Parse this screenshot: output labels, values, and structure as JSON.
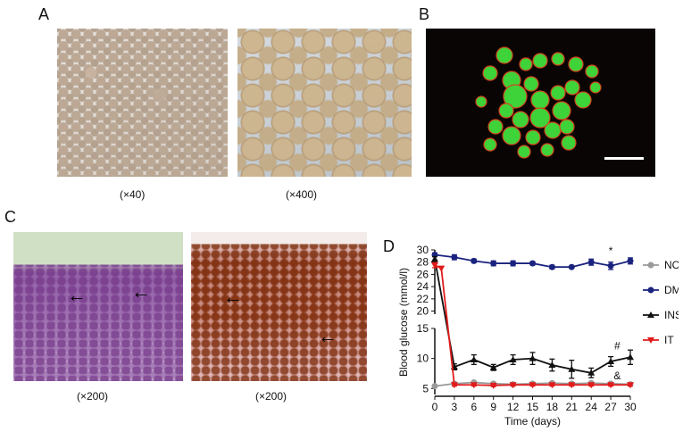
{
  "panels": {
    "A": {
      "letter": "A",
      "caption_left": "(×40)",
      "caption_right": "(×400)"
    },
    "B": {
      "letter": "B"
    },
    "C": {
      "letter": "C",
      "caption_left": "(×200)",
      "caption_right": "(×200)"
    },
    "D": {
      "letter": "D"
    }
  },
  "chart_data": {
    "type": "line",
    "xlabel": "Time (days)",
    "ylabel": "Blood glucose (mmol/l)",
    "x_ticks": [
      0,
      3,
      6,
      9,
      12,
      15,
      18,
      21,
      24,
      27,
      30
    ],
    "y_ticks_lower": [
      5,
      10,
      15
    ],
    "y_ticks_upper": [
      20,
      22,
      24,
      26,
      28,
      30
    ],
    "y_axis_break": true,
    "xlim": [
      0,
      30
    ],
    "annotations": [
      {
        "text": "*",
        "x": 27,
        "y": 29.3
      },
      {
        "text": "#",
        "x": 28,
        "y": 11.5
      },
      {
        "text": "&",
        "x": 28,
        "y": 6.5
      }
    ],
    "legend_position": "right",
    "series": [
      {
        "name": "NC",
        "color": "#9a9a9a",
        "marker": "circle",
        "x": [
          0,
          3,
          6,
          9,
          12,
          15,
          18,
          21,
          24,
          27,
          30
        ],
        "values": [
          5.4,
          5.8,
          6.0,
          5.8,
          5.7,
          5.8,
          5.9,
          5.8,
          5.9,
          5.8,
          5.7
        ],
        "errors": [
          0.2,
          0.2,
          0.2,
          0.2,
          0.2,
          0.2,
          0.2,
          0.2,
          0.2,
          0.2,
          0.2
        ]
      },
      {
        "name": "DM",
        "color": "#1a237e",
        "marker": "circle",
        "x": [
          0,
          3,
          6,
          9,
          12,
          15,
          18,
          21,
          24,
          27,
          30
        ],
        "values": [
          29.2,
          28.8,
          28.2,
          27.8,
          27.8,
          27.8,
          27.2,
          27.2,
          28.0,
          27.4,
          28.2
        ],
        "errors": [
          0.3,
          0.4,
          0.3,
          0.4,
          0.4,
          0.3,
          0.3,
          0.2,
          0.5,
          0.6,
          0.5
        ]
      },
      {
        "name": "INS",
        "color": "#111111",
        "marker": "triangle",
        "x": [
          0,
          3,
          6,
          9,
          12,
          15,
          18,
          21,
          24,
          27,
          30
        ],
        "values": [
          28.5,
          8.6,
          9.8,
          8.5,
          9.8,
          10.0,
          8.9,
          8.2,
          7.6,
          9.5,
          10.2
        ],
        "errors": [
          0.4,
          0.5,
          0.8,
          0.5,
          0.8,
          1.0,
          1.0,
          1.5,
          0.8,
          0.8,
          1.2
        ]
      },
      {
        "name": "IT",
        "color": "#e21b1b",
        "marker": "triangle-down",
        "x": [
          0,
          1,
          3,
          6,
          9,
          12,
          15,
          18,
          21,
          24,
          27,
          30
        ],
        "values": [
          27.5,
          27.0,
          5.6,
          5.6,
          5.5,
          5.6,
          5.6,
          5.6,
          5.6,
          5.6,
          5.6,
          5.6
        ],
        "errors": [
          0.4,
          0,
          0.2,
          0.2,
          0.2,
          0.2,
          0.2,
          0.2,
          0.2,
          0.2,
          0.2,
          0.2
        ]
      }
    ]
  }
}
